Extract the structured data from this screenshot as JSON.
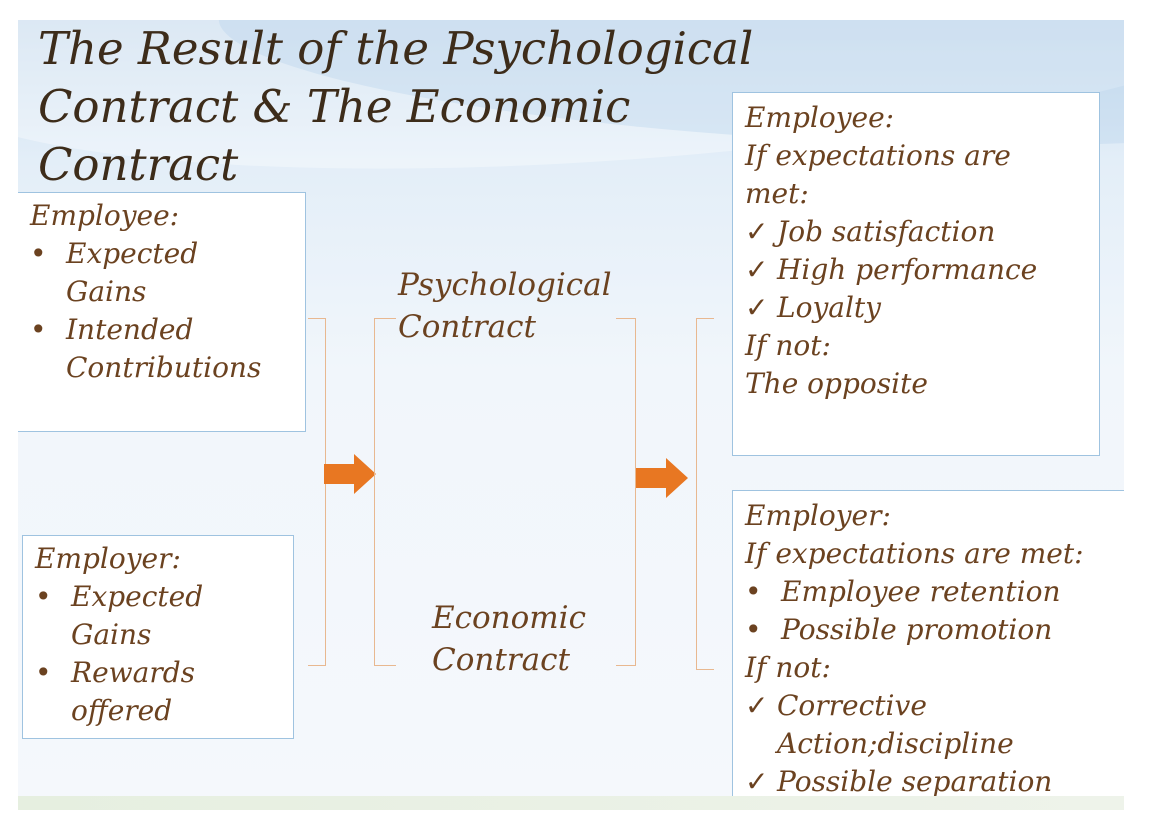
{
  "slide": {
    "title": "The Result of the Psychological Contract & The Economic Contract"
  },
  "input_employee": {
    "heading": "Employee:",
    "items": [
      "Expected Gains",
      "Intended Contributions"
    ]
  },
  "input_employer": {
    "heading": "Employer:",
    "items": [
      "Expected Gains",
      "Rewards offered"
    ]
  },
  "contracts": {
    "psychological": "Psychological Contract",
    "economic": "Economic Contract"
  },
  "result_employee": {
    "heading": "Employee:",
    "condition_met": "If expectations are met:",
    "outcomes_met": [
      "Job satisfaction",
      "High performance",
      "Loyalty"
    ],
    "condition_not": "If not:",
    "outcome_not": "The opposite"
  },
  "result_employer": {
    "heading": "Employer:",
    "condition_met": "If expectations are met:",
    "outcomes_met": [
      "Employee retention",
      "Possible promotion"
    ],
    "condition_not": "If not:",
    "outcomes_not": [
      "Corrective Action;discipline",
      "Possible separation"
    ]
  },
  "colors": {
    "text": "#6b4220",
    "title": "#3d2c1a",
    "arrow": "#e87722",
    "bracket": "#e8b890",
    "box_border": "#9fc3e0"
  },
  "icons": {
    "arrow": "right-arrow-icon",
    "check": "checkmark-icon",
    "bullet": "bullet-icon"
  }
}
